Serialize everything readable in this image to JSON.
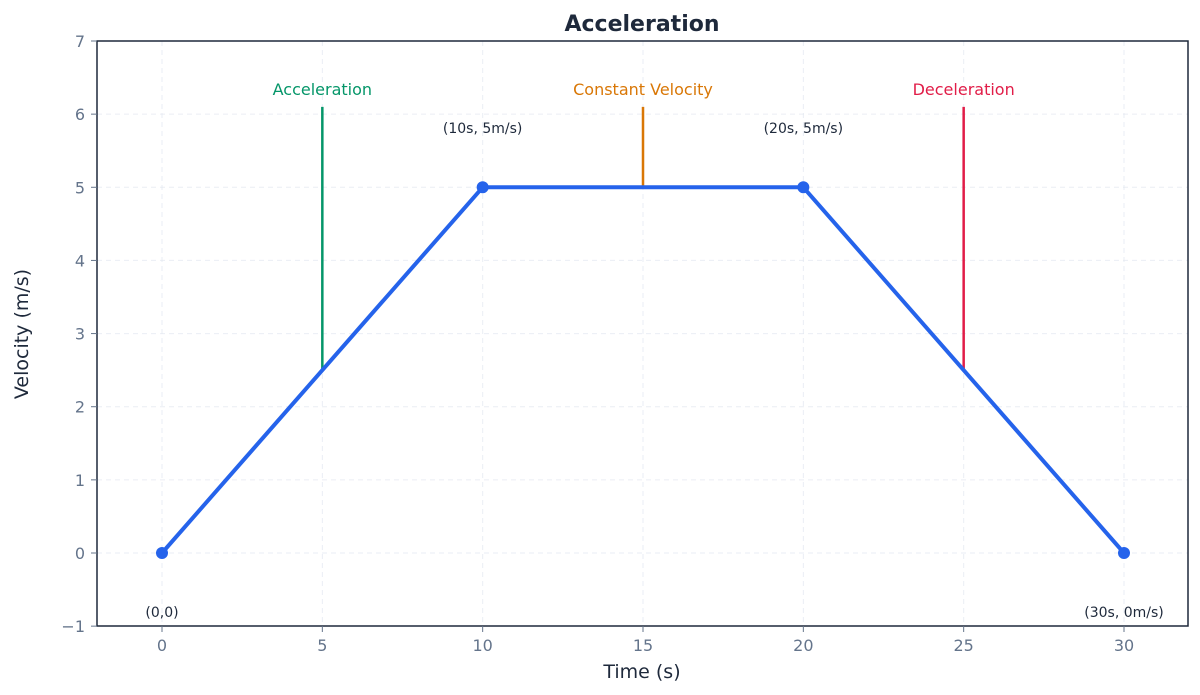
{
  "chart_data": {
    "type": "line",
    "title": "Acceleration",
    "xlabel": "Time (s)",
    "ylabel": "Velocity (m/s)",
    "xlim": [
      -2,
      32
    ],
    "ylim": [
      -1,
      7
    ],
    "xticks": [
      0,
      5,
      10,
      15,
      20,
      25,
      30
    ],
    "yticks": [
      -1,
      0,
      1,
      2,
      3,
      4,
      5,
      6,
      7
    ],
    "grid": true,
    "legend": null,
    "series": [
      {
        "name": "Velocity",
        "color": "#2563eb",
        "x": [
          0,
          10,
          20,
          30
        ],
        "y": [
          0,
          5,
          5,
          0
        ],
        "markers": true
      }
    ],
    "point_annotations": [
      {
        "text": "(0,0)",
        "x": 0,
        "y": 0
      },
      {
        "text": "(10s, 5m/s)",
        "x": 10,
        "y": 5
      },
      {
        "text": "(20s, 5m/s)",
        "x": 20,
        "y": 5
      },
      {
        "text": "(30s, 0m/s)",
        "x": 30,
        "y": 0
      }
    ],
    "phase_annotations": [
      {
        "text": "Acceleration",
        "x": 5,
        "y_from": 2.5,
        "y_to": 6.1,
        "color": "#059669"
      },
      {
        "text": "Constant Velocity",
        "x": 15,
        "y_from": 5,
        "y_to": 6.1,
        "color": "#d97706"
      },
      {
        "text": "Deceleration",
        "x": 25,
        "y_from": 2.5,
        "y_to": 6.1,
        "color": "#e11d48"
      }
    ]
  },
  "colors": {
    "line": "#2563eb",
    "title": "#1e293b",
    "tick": "#64748b",
    "grid": "#e2e8f0",
    "axes": "#1e293b"
  }
}
